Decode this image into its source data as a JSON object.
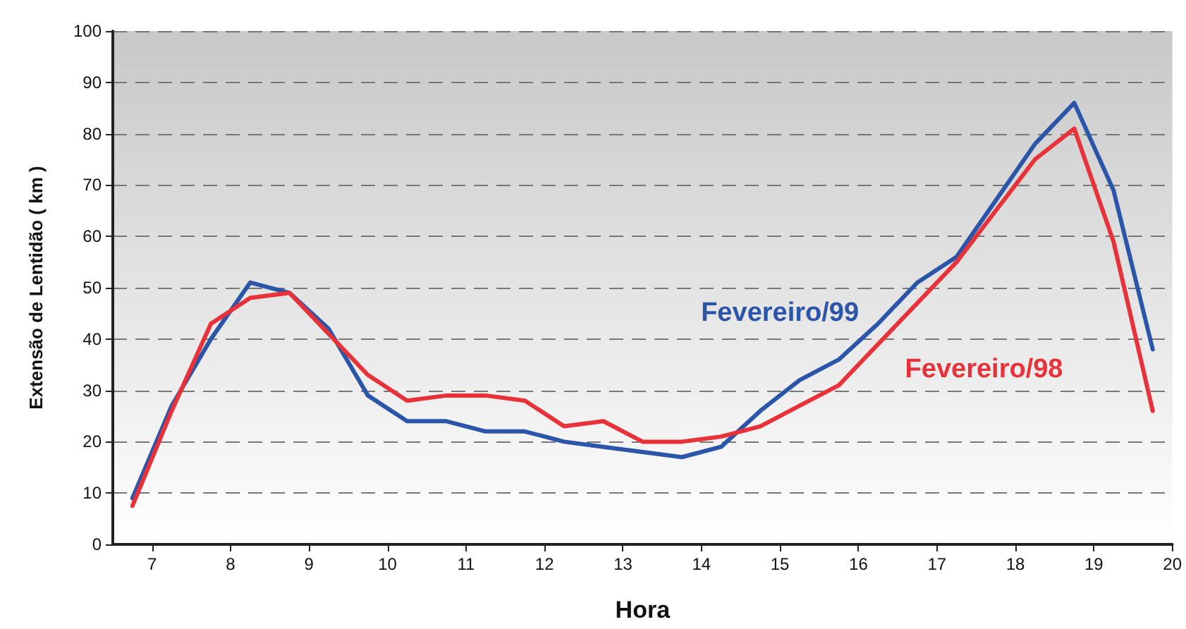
{
  "chart_data": {
    "type": "line",
    "xlabel": "Hora",
    "ylabel": "Extensão de Lentidão ( km )",
    "x": [
      6.75,
      7.25,
      7.75,
      8.25,
      8.75,
      9.25,
      9.75,
      10.25,
      10.75,
      11.25,
      11.75,
      12.25,
      12.75,
      13.25,
      13.75,
      14.25,
      14.75,
      15.25,
      15.75,
      16.25,
      16.75,
      17.25,
      17.75,
      18.25,
      18.75,
      19.25,
      19.75
    ],
    "series": [
      {
        "name": "Fevereiro/99",
        "color": "#2b55a8",
        "values": [
          9,
          27,
          40,
          51,
          49,
          42,
          29,
          24,
          24,
          22,
          22,
          20,
          19,
          18,
          17,
          19,
          26,
          32,
          36,
          43,
          51,
          56,
          67,
          78,
          86,
          69,
          38
        ]
      },
      {
        "name": "Fevereiro/98",
        "color": "#e8323a",
        "values": [
          7.5,
          26,
          43,
          48,
          49,
          41,
          33,
          28,
          29,
          29,
          28,
          23,
          24,
          20,
          20,
          21,
          23,
          27,
          31,
          39,
          47,
          55,
          65,
          75,
          81,
          59,
          26
        ]
      }
    ],
    "xlim": [
      6.5,
      20
    ],
    "xticks": [
      7,
      8,
      9,
      10,
      11,
      12,
      13,
      14,
      15,
      16,
      17,
      18,
      19,
      20
    ],
    "ylim": [
      0,
      100
    ],
    "yticks": [
      0,
      10,
      20,
      30,
      40,
      50,
      60,
      70,
      80,
      90,
      100
    ],
    "grid": "y",
    "legend": false,
    "marker": "none",
    "line_style": "solid"
  }
}
